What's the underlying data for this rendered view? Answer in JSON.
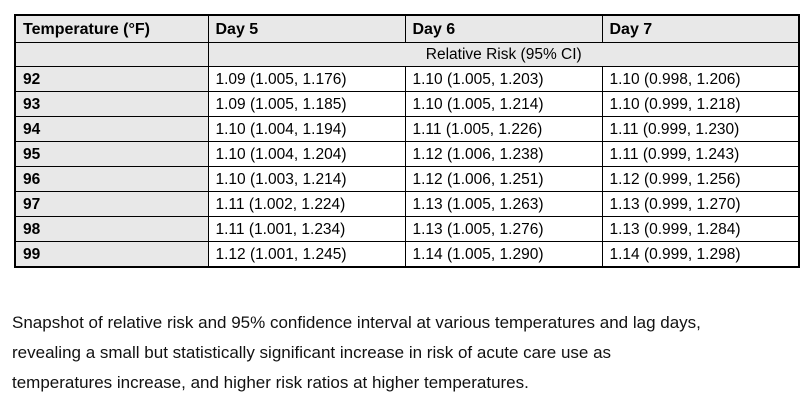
{
  "colors": {
    "shaded_cell_fill": "#e8e8e8",
    "data_cell_fill": "#ffffff",
    "border": "#000000",
    "text": "#000000",
    "background": "#ffffff"
  },
  "table": {
    "columns": [
      "Temperature (°F)",
      "Day 5",
      "Day 6",
      "Day 7"
    ],
    "subheader_label": "Relative Risk (95% CI)",
    "rows": [
      {
        "temp": "92",
        "day5": "1.09 (1.005, 1.176)",
        "day6": "1.10 (1.005, 1.203)",
        "day7": "1.10 (0.998, 1.206)"
      },
      {
        "temp": "93",
        "day5": "1.09 (1.005, 1.185)",
        "day6": "1.10 (1.005, 1.214)",
        "day7": "1.10 (0.999, 1.218)"
      },
      {
        "temp": "94",
        "day5": "1.10 (1.004, 1.194)",
        "day6": "1.11 (1.005, 1.226)",
        "day7": "1.11 (0.999, 1.230)"
      },
      {
        "temp": "95",
        "day5": "1.10 (1.004, 1.204)",
        "day6": "1.12 (1.006, 1.238)",
        "day7": "1.11 (0.999, 1.243)"
      },
      {
        "temp": "96",
        "day5": "1.10 (1.003, 1.214)",
        "day6": "1.12 (1.006, 1.251)",
        "day7": "1.12 (0.999, 1.256)"
      },
      {
        "temp": "97",
        "day5": "1.11 (1.002, 1.224)",
        "day6": "1.13 (1.005, 1.263)",
        "day7": "1.13 (0.999, 1.270)"
      },
      {
        "temp": "98",
        "day5": "1.11 (1.001, 1.234)",
        "day6": "1.13 (1.005, 1.276)",
        "day7": "1.13 (0.999, 1.284)"
      },
      {
        "temp": "99",
        "day5": "1.12 (1.001, 1.245)",
        "day6": "1.14 (1.005, 1.290)",
        "day7": "1.14 (0.999, 1.298)"
      }
    ]
  },
  "caption": {
    "full_text": "Snapshot of relative risk and 95% confidence interval at various temperatures and lag days, revealing a small but statistically significant increase in risk of acute care use as temperatures increase, and higher risk ratios at higher temperatures.",
    "lines": [
      "Snapshot of relative risk and 95% confidence interval at various temperatures and lag days,",
      "revealing a small but statistically significant increase in risk of acute care use as",
      "temperatures increase, and higher risk ratios at higher temperatures."
    ]
  },
  "chart_data": {
    "type": "table",
    "title": "",
    "columns": [
      "Temperature (°F)",
      "Day 5",
      "Day 6",
      "Day 7"
    ],
    "subheader": "Relative Risk (95% CI)",
    "temperatures_f": [
      92,
      93,
      94,
      95,
      96,
      97,
      98,
      99
    ],
    "series": [
      {
        "name": "Day 5",
        "relative_risk": [
          1.09,
          1.09,
          1.1,
          1.1,
          1.1,
          1.11,
          1.11,
          1.12
        ],
        "ci_lower": [
          1.005,
          1.005,
          1.004,
          1.004,
          1.003,
          1.002,
          1.001,
          1.001
        ],
        "ci_upper": [
          1.176,
          1.185,
          1.194,
          1.204,
          1.214,
          1.224,
          1.234,
          1.245
        ]
      },
      {
        "name": "Day 6",
        "relative_risk": [
          1.1,
          1.1,
          1.11,
          1.12,
          1.12,
          1.13,
          1.13,
          1.14
        ],
        "ci_lower": [
          1.005,
          1.005,
          1.005,
          1.006,
          1.006,
          1.005,
          1.005,
          1.005
        ],
        "ci_upper": [
          1.203,
          1.214,
          1.226,
          1.238,
          1.251,
          1.263,
          1.276,
          1.29
        ]
      },
      {
        "name": "Day 7",
        "relative_risk": [
          1.1,
          1.1,
          1.11,
          1.11,
          1.12,
          1.13,
          1.13,
          1.14
        ],
        "ci_lower": [
          0.998,
          0.999,
          0.999,
          0.999,
          0.999,
          0.999,
          0.999,
          0.999
        ],
        "ci_upper": [
          1.206,
          1.218,
          1.23,
          1.243,
          1.256,
          1.27,
          1.284,
          1.298
        ]
      }
    ]
  }
}
